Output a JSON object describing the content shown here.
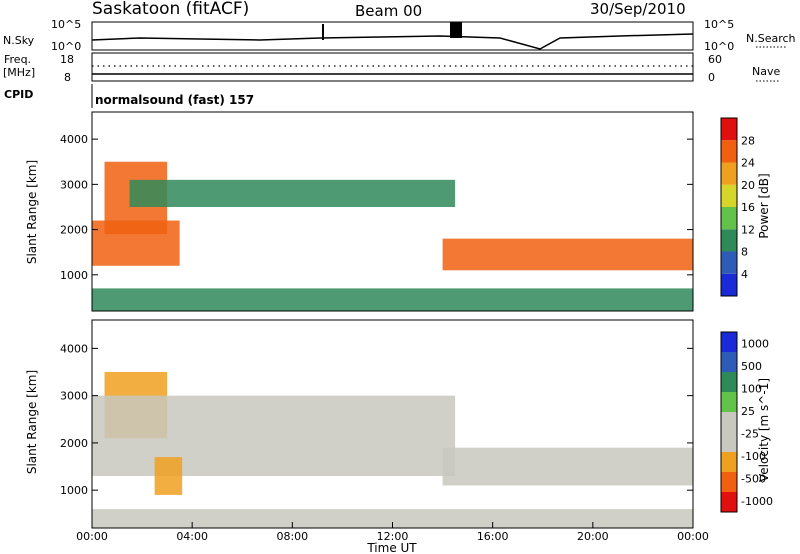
{
  "header": {
    "station": "Saskatoon (fitACF)",
    "beam": "Beam 00",
    "date": "30/Sep/2010"
  },
  "top_panel": {
    "left_label": "N.Sky",
    "left_tick_top": "10^5",
    "left_tick_bottom": "10^0",
    "right_tick_top": "10^5",
    "right_tick_bottom": "10^0",
    "right_label": "N.Search"
  },
  "freq_panel": {
    "left_label_1": "Freq.",
    "left_label_2": "[MHz]",
    "left_tick_top": "18",
    "left_tick_bottom": "8",
    "right_tick_top": "60",
    "right_tick_bottom": "0",
    "right_label": "Nave"
  },
  "cpid_panel": {
    "label": "CPID",
    "value": "normalsound (fast) 157"
  },
  "chart_data": [
    {
      "type": "heatmap",
      "ylabel": "Slant Range [km]",
      "yticks": [
        "1000",
        "2000",
        "3000",
        "4000"
      ],
      "ylim": [
        200,
        4600
      ],
      "colorbar": {
        "label": "Power [dB]",
        "ticks": [
          "4",
          "8",
          "12",
          "16",
          "20",
          "24",
          "28"
        ],
        "range": [
          0,
          32
        ],
        "colors": [
          "#1a2ad6",
          "#2f5bb8",
          "#2f8a5a",
          "#62c24a",
          "#d6d62a",
          "#f0a020",
          "#f06010",
          "#e01010"
        ]
      },
      "regions": [
        {
          "t_start": 0.5,
          "t_end": 3.0,
          "r_start": 1900,
          "r_end": 3500,
          "value": 26
        },
        {
          "t_start": 0.0,
          "t_end": 3.5,
          "r_start": 1200,
          "r_end": 2200,
          "value": 24
        },
        {
          "t_start": 1.5,
          "t_end": 14.5,
          "r_start": 2500,
          "r_end": 3100,
          "value": 10
        },
        {
          "t_start": 14.0,
          "t_end": 24.0,
          "r_start": 1100,
          "r_end": 1800,
          "value": 25
        },
        {
          "t_start": 0.0,
          "t_end": 24.0,
          "r_start": 200,
          "r_end": 700,
          "value": 8
        }
      ]
    },
    {
      "type": "heatmap",
      "ylabel": "Slant Range [km]",
      "yticks": [
        "1000",
        "2000",
        "3000",
        "4000"
      ],
      "ylim": [
        200,
        4600
      ],
      "xlabel": "Time UT",
      "xticks": [
        "00:00",
        "04:00",
        "08:00",
        "12:00",
        "16:00",
        "20:00",
        "00:00"
      ],
      "xlim": [
        0,
        24
      ],
      "colorbar": {
        "label": "Velocity [m s^-1]",
        "ticks": [
          "1000",
          "500",
          "100",
          "25",
          "-25",
          "-100",
          "-500",
          "-1000"
        ],
        "range": [
          -1000,
          1000
        ],
        "colors": [
          "#e01010",
          "#f06010",
          "#f0a020",
          "#c8c8c0",
          "#c8c8c0",
          "#62c24a",
          "#2f8a5a",
          "#2f5bb8",
          "#1a2ad6"
        ]
      },
      "regions": [
        {
          "t_start": 0.5,
          "t_end": 3.0,
          "r_start": 2100,
          "r_end": 3500,
          "value": -400
        },
        {
          "t_start": 0.0,
          "t_end": 14.5,
          "r_start": 1300,
          "r_end": 3000,
          "value": 0
        },
        {
          "t_start": 2.5,
          "t_end": 3.6,
          "r_start": 900,
          "r_end": 1700,
          "value": -450
        },
        {
          "t_start": 14.0,
          "t_end": 24.0,
          "r_start": 1100,
          "r_end": 1900,
          "value": 0
        },
        {
          "t_start": 0.0,
          "t_end": 24.0,
          "r_start": 200,
          "r_end": 600,
          "value": -150
        }
      ]
    }
  ]
}
